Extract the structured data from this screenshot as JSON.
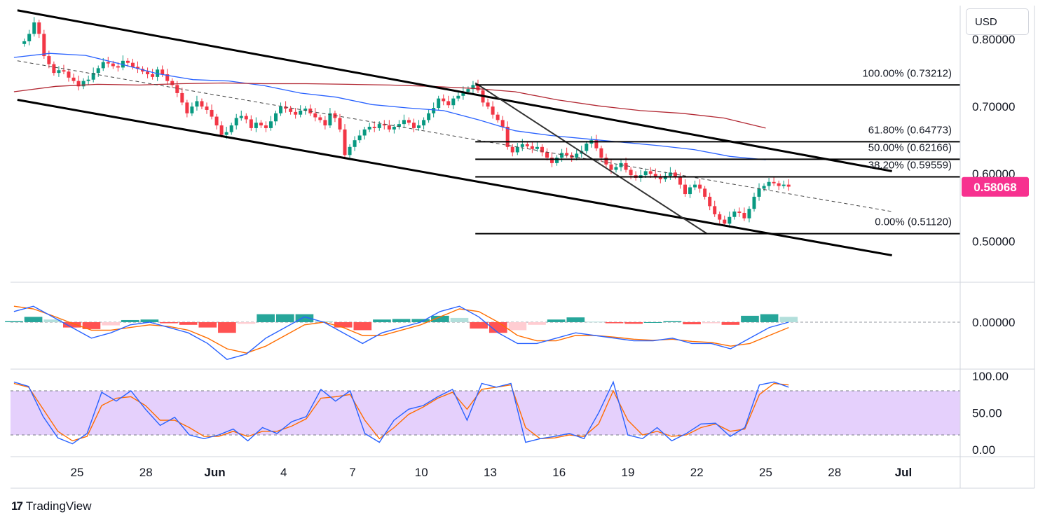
{
  "currency": "USD",
  "branding": "TradingView",
  "colors": {
    "up": "#089981",
    "down": "#f23645",
    "ma_blue": "#2962ff",
    "ma_red": "#b22833",
    "price_badge": "#f7318f",
    "rsi_band": "#e1c8fb",
    "macd_line": "#2962ff",
    "signal_line": "#ff6d00",
    "hist_up": "#26a69a",
    "hist_up_light": "#b2dfdb",
    "hist_down": "#ff5252",
    "hist_down_light": "#ffcdd2"
  },
  "chart_data": {
    "type": "candlestick",
    "price_axis": {
      "range": [
        0.44,
        0.85
      ],
      "ticks": [
        "0.80000",
        "0.70000",
        "0.60000",
        "0.50000"
      ],
      "tick_values": [
        0.8,
        0.7,
        0.6,
        0.5
      ]
    },
    "current_price": {
      "label": "0.58068",
      "value": 0.58068
    },
    "x_axis": {
      "labels": [
        "25",
        "28",
        "Jun",
        "4",
        "7",
        "10",
        "13",
        "16",
        "19",
        "22",
        "25",
        "28",
        "Jul"
      ],
      "label_day_index": [
        1,
        4,
        7,
        10,
        13,
        16,
        19,
        22,
        25,
        28,
        31,
        34,
        37
      ],
      "day_range": [
        -1.75,
        39.5
      ]
    },
    "closes": [
      0.797,
      0.808,
      0.825,
      0.808,
      0.775,
      0.763,
      0.75,
      0.754,
      0.752,
      0.743,
      0.738,
      0.73,
      0.738,
      0.74,
      0.75,
      0.757,
      0.766,
      0.764,
      0.76,
      0.758,
      0.768,
      0.765,
      0.759,
      0.756,
      0.752,
      0.748,
      0.744,
      0.755,
      0.748,
      0.738,
      0.732,
      0.72,
      0.706,
      0.69,
      0.7,
      0.708,
      0.7,
      0.695,
      0.685,
      0.672,
      0.658,
      0.662,
      0.672,
      0.683,
      0.686,
      0.681,
      0.668,
      0.676,
      0.672,
      0.668,
      0.678,
      0.69,
      0.7,
      0.697,
      0.692,
      0.688,
      0.694,
      0.697,
      0.69,
      0.684,
      0.68,
      0.672,
      0.69,
      0.683,
      0.666,
      0.628,
      0.64,
      0.65,
      0.657,
      0.666,
      0.67,
      0.668,
      0.674,
      0.672,
      0.666,
      0.67,
      0.674,
      0.68,
      0.676,
      0.668,
      0.672,
      0.68,
      0.69,
      0.698,
      0.712,
      0.708,
      0.702,
      0.712,
      0.716,
      0.722,
      0.726,
      0.732,
      0.724,
      0.706,
      0.7,
      0.688,
      0.68,
      0.67,
      0.64,
      0.632,
      0.64,
      0.644,
      0.641,
      0.637,
      0.64,
      0.632,
      0.624,
      0.616,
      0.624,
      0.631,
      0.628,
      0.624,
      0.63,
      0.634,
      0.645,
      0.65,
      0.638,
      0.624,
      0.614,
      0.606,
      0.61,
      0.616,
      0.606,
      0.598,
      0.594,
      0.598,
      0.604,
      0.6,
      0.596,
      0.592,
      0.597,
      0.602,
      0.596,
      0.584,
      0.57,
      0.58,
      0.584,
      0.578,
      0.566,
      0.552,
      0.54,
      0.532,
      0.526,
      0.536,
      0.544,
      0.542,
      0.534,
      0.548,
      0.566,
      0.578,
      0.582,
      0.588,
      0.586,
      0.582,
      0.584,
      0.581
    ],
    "ma_blue": {
      "name": "",
      "values": [
        0.773,
        0.779,
        0.776,
        0.763,
        0.749,
        0.74,
        0.738,
        0.731,
        0.72,
        0.714,
        0.703,
        0.698,
        0.694,
        0.68,
        0.664,
        0.657,
        0.652,
        0.647,
        0.642,
        0.636,
        0.626,
        0.621
      ]
    },
    "ma_red": {
      "name": "",
      "values": [
        0.722,
        0.73,
        0.733,
        0.732,
        0.734,
        0.735,
        0.734,
        0.734,
        0.733,
        0.732,
        0.73,
        0.727,
        0.722,
        0.71,
        0.701,
        0.694,
        0.69,
        0.683,
        0.668
      ]
    },
    "fibonacci": [
      {
        "label": "100.00% (0.73212)",
        "value": 0.73212
      },
      {
        "label": "61.80% (0.64773)",
        "value": 0.64773
      },
      {
        "label": "50.00% (0.62166)",
        "value": 0.62166
      },
      {
        "label": "38.20% (0.59559)",
        "value": 0.59559
      },
      {
        "label": "0.00% (0.51120)",
        "value": 0.5112
      }
    ],
    "macd": {
      "axis_tick": "0.00000",
      "macd_line": [
        0.02,
        0.03,
        0.01,
        -0.01,
        -0.03,
        -0.02,
        -0.005,
        0.0,
        -0.01,
        -0.02,
        -0.04,
        -0.07,
        -0.06,
        -0.03,
        -0.01,
        0.01,
        0.0,
        -0.02,
        -0.04,
        -0.02,
        -0.01,
        0.0,
        0.02,
        0.03,
        0.01,
        -0.02,
        -0.04,
        -0.04,
        -0.03,
        -0.02,
        -0.025,
        -0.03,
        -0.035,
        -0.035,
        -0.03,
        -0.04,
        -0.04,
        -0.05,
        -0.03,
        -0.01,
        0.0
      ],
      "signal_line": [
        0.03,
        0.025,
        0.012,
        -0.002,
        -0.015,
        -0.015,
        -0.01,
        -0.005,
        -0.008,
        -0.015,
        -0.03,
        -0.05,
        -0.058,
        -0.045,
        -0.025,
        -0.005,
        0.0,
        -0.01,
        -0.025,
        -0.025,
        -0.015,
        -0.005,
        0.01,
        0.025,
        0.02,
        0.0,
        -0.025,
        -0.035,
        -0.035,
        -0.025,
        -0.025,
        -0.028,
        -0.032,
        -0.034,
        -0.032,
        -0.036,
        -0.038,
        -0.045,
        -0.04,
        -0.025,
        -0.01
      ],
      "histogram": [
        0.002,
        0.01,
        0.005,
        -0.01,
        -0.013,
        -0.006,
        0.004,
        0.005,
        -0.002,
        -0.005,
        -0.01,
        -0.02,
        -0.003,
        0.015,
        0.015,
        0.015,
        0.002,
        -0.01,
        -0.015,
        0.005,
        0.006,
        0.006,
        0.012,
        0.008,
        -0.012,
        -0.02,
        -0.015,
        -0.005,
        0.005,
        0.009,
        0.001,
        -0.002,
        -0.003,
        0.0,
        0.002,
        -0.004,
        -0.002,
        -0.005,
        0.012,
        0.015,
        0.01
      ]
    },
    "rsi": {
      "axis_ticks": [
        "100.00",
        "50.00",
        "0.00"
      ],
      "band": [
        20,
        80
      ],
      "k": [
        92,
        86,
        45,
        16,
        8,
        22,
        78,
        66,
        80,
        55,
        33,
        44,
        20,
        15,
        20,
        28,
        12,
        30,
        22,
        38,
        45,
        82,
        66,
        80,
        22,
        10,
        40,
        55,
        60,
        72,
        82,
        40,
        90,
        85,
        90,
        10,
        15,
        18,
        22,
        15,
        50,
        92,
        20,
        15,
        30,
        12,
        22,
        35,
        36,
        18,
        30,
        88,
        92,
        85
      ],
      "d": [
        90,
        85,
        55,
        25,
        12,
        18,
        60,
        70,
        72,
        60,
        40,
        40,
        30,
        18,
        18,
        25,
        18,
        25,
        25,
        32,
        42,
        70,
        72,
        75,
        40,
        15,
        30,
        48,
        58,
        70,
        78,
        55,
        82,
        85,
        88,
        30,
        15,
        16,
        20,
        18,
        35,
        80,
        40,
        20,
        25,
        18,
        20,
        30,
        35,
        25,
        28,
        75,
        90,
        88
      ]
    }
  }
}
